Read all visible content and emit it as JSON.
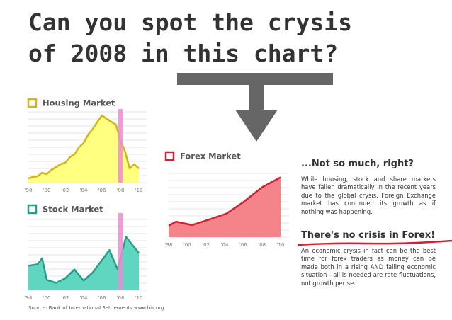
{
  "headline": [
    "Can you spot the crysis",
    "of 2008 in this chart?"
  ],
  "chart_data": [
    {
      "type": "area",
      "title": "Housing Market",
      "color": "#d4b41c",
      "fill": "#ffff80",
      "highlight_x": 2008,
      "highlight_color": "#f08ad0",
      "x": [
        1998,
        1998.5,
        1999,
        1999.5,
        2000,
        2000.5,
        2001,
        2001.5,
        2002,
        2002.5,
        2003,
        2003.5,
        2004,
        2004.5,
        2005,
        2005.5,
        2006,
        2006.5,
        2007,
        2007.5,
        2008,
        2008.5,
        2009,
        2009.5,
        2010
      ],
      "values": [
        6,
        8,
        9,
        14,
        12,
        18,
        22,
        26,
        28,
        36,
        40,
        50,
        56,
        68,
        76,
        86,
        95,
        90,
        86,
        82,
        60,
        44,
        20,
        26,
        20
      ],
      "xlim": [
        1998,
        2010
      ],
      "ylim": [
        0,
        100
      ],
      "xticks": [
        {
          "value": 1998,
          "label": "'98"
        },
        {
          "value": 2000,
          "label": "'00"
        },
        {
          "value": 2002,
          "label": "'02"
        },
        {
          "value": 2004,
          "label": "'04"
        },
        {
          "value": 2006,
          "label": "'06"
        },
        {
          "value": 2008,
          "label": "'08"
        },
        {
          "value": 2010,
          "label": "'10"
        }
      ]
    },
    {
      "type": "area",
      "title": "Stock Market",
      "color": "#2a9d8a",
      "fill": "#5fd6c0",
      "highlight_x": 2008,
      "highlight_color": "#f08ad0",
      "x": [
        1998,
        1999,
        1999.5,
        2000,
        2001,
        2002,
        2003,
        2004,
        2005,
        2006.8,
        2007.7,
        2008.6,
        2010
      ],
      "values": [
        33,
        35,
        43,
        14,
        10,
        16,
        28,
        13,
        24,
        54,
        28,
        72,
        50
      ],
      "xlim": [
        1998,
        2010
      ],
      "ylim": [
        0,
        100
      ],
      "xticks": [
        {
          "value": 1998,
          "label": "'98"
        },
        {
          "value": 2000,
          "label": "'00"
        },
        {
          "value": 2002,
          "label": "'02"
        },
        {
          "value": 2004,
          "label": "'04"
        },
        {
          "value": 2006,
          "label": "'06"
        },
        {
          "value": 2008,
          "label": "'08"
        },
        {
          "value": 2010,
          "label": "'10"
        }
      ]
    },
    {
      "type": "area",
      "title": "Forex Market",
      "color": "#cc2233",
      "fill": "#f4838a",
      "x": [
        1998,
        1998.8,
        2000.5,
        2002.3,
        2004.2,
        2006,
        2008,
        2010
      ],
      "values": [
        17,
        23,
        18,
        26,
        35,
        52,
        74,
        89
      ],
      "xlim": [
        1998,
        2010
      ],
      "ylim": [
        0,
        100
      ],
      "xticks": [
        {
          "value": 1998,
          "label": "'98"
        },
        {
          "value": 2000,
          "label": "'00"
        },
        {
          "value": 2002,
          "label": "'02"
        },
        {
          "value": 2004,
          "label": "'04"
        },
        {
          "value": 2006,
          "label": "'06"
        },
        {
          "value": 2008,
          "label": "'08"
        },
        {
          "value": 2010,
          "label": "'10"
        }
      ]
    }
  ],
  "notes": [
    {
      "heading": "...Not so much, right?",
      "text": "While housing, stock and share markets have fallen dramatically in the recent years due to the global crysis, Foreign Exchange market has continued its growth as if nothing was happening."
    },
    {
      "heading": "There's no crisis in Forex!",
      "text": "An economic crysis in fact can be the best time for forex traders as money can be made both in a rising AND falling economic situation - all is needed are rate fluctuations, not growth per se."
    }
  ],
  "source": "Source: Bank of International Settlements www.bis.org"
}
